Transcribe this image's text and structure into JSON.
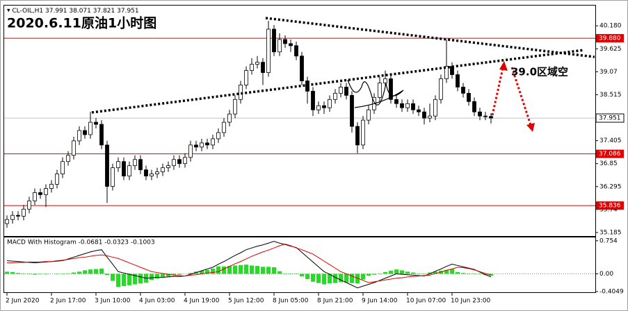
{
  "chart_data": [
    {
      "type": "candlestick",
      "symbol": "CL-OIL,H1",
      "title": "2020.6.11原油1小时图",
      "annotation": "39.0区域空",
      "categories": [
        "2 Jun 2020",
        null,
        null,
        null,
        null,
        null,
        null,
        null,
        "2 Jun 17:00",
        null,
        null,
        null,
        null,
        null,
        null,
        null,
        "3 Jun 10:00",
        null,
        null,
        null,
        null,
        null,
        null,
        null,
        "4 Jun 03:00",
        null,
        null,
        null,
        null,
        null,
        null,
        null,
        "4 Jun 19:00",
        null,
        null,
        null,
        null,
        null,
        null,
        null,
        "5 Jun 12:00",
        null,
        null,
        null,
        null,
        null,
        null,
        null,
        "8 Jun 05:00",
        null,
        null,
        null,
        null,
        null,
        null,
        null,
        "8 Jun 21:00",
        null,
        null,
        null,
        null,
        null,
        null,
        null,
        "9 Jun 14:00",
        null,
        null,
        null,
        null,
        null,
        null,
        null,
        "10 Jun 07:00",
        null,
        null,
        null,
        null,
        null,
        null,
        null,
        "10 Jun 23:00",
        null,
        null,
        null,
        null,
        null,
        null,
        null
      ],
      "open": [
        35.4,
        35.5,
        35.6,
        35.58,
        35.75,
        35.95,
        36.15,
        36.1,
        36.25,
        36.35,
        36.6,
        36.9,
        37.05,
        37.4,
        37.65,
        37.55,
        37.85,
        37.8,
        37.3,
        36.3,
        36.75,
        36.9,
        36.55,
        36.8,
        36.95,
        36.7,
        36.55,
        36.6,
        36.65,
        36.75,
        36.8,
        36.95,
        36.85,
        37.0,
        37.3,
        37.25,
        37.35,
        37.3,
        37.45,
        37.6,
        37.85,
        38.05,
        38.4,
        38.75,
        39.1,
        39.25,
        39.3,
        39.05,
        40.1,
        39.55,
        39.85,
        39.75,
        39.7,
        39.45,
        38.85,
        38.6,
        38.15,
        38.25,
        38.2,
        38.4,
        38.55,
        38.7,
        38.5,
        37.75,
        37.3,
        37.9,
        38.15,
        38.45,
        38.8,
        38.9,
        38.4,
        38.3,
        38.2,
        38.3,
        38.15,
        38.1,
        37.95,
        38.0,
        38.4,
        38.9,
        39.2,
        39.0,
        38.7,
        38.55,
        38.35,
        38.1,
        38.0,
        37.991
      ],
      "high": [
        35.6,
        35.7,
        35.7,
        35.85,
        36.05,
        36.25,
        36.25,
        36.35,
        36.45,
        36.7,
        37.0,
        37.15,
        37.5,
        37.75,
        37.75,
        38.1,
        37.95,
        37.9,
        37.4,
        36.85,
        37.0,
        37.0,
        36.9,
        37.05,
        37.05,
        36.8,
        36.7,
        36.75,
        36.85,
        36.9,
        37.05,
        37.05,
        37.1,
        37.4,
        37.4,
        37.45,
        37.45,
        37.55,
        37.7,
        37.95,
        38.15,
        38.5,
        38.85,
        39.2,
        39.4,
        39.45,
        39.4,
        40.3,
        40.2,
        40.0,
        39.95,
        39.85,
        39.8,
        39.55,
        38.95,
        38.7,
        38.35,
        38.35,
        38.5,
        38.65,
        38.8,
        38.8,
        38.6,
        37.85,
        38.0,
        38.25,
        38.55,
        38.95,
        39.1,
        39.0,
        38.5,
        38.4,
        38.4,
        38.4,
        38.25,
        38.2,
        38.3,
        38.5,
        39.0,
        39.85,
        39.3,
        39.1,
        38.8,
        38.65,
        38.45,
        38.2,
        38.1,
        38.071
      ],
      "low": [
        35.3,
        35.4,
        35.48,
        35.48,
        35.65,
        35.85,
        36.0,
        35.8,
        36.15,
        36.25,
        36.5,
        36.8,
        36.95,
        37.3,
        37.45,
        37.45,
        37.7,
        37.2,
        35.9,
        36.2,
        36.65,
        36.45,
        36.45,
        36.7,
        36.6,
        36.45,
        36.45,
        36.5,
        36.55,
        36.65,
        36.7,
        36.75,
        36.75,
        36.9,
        37.15,
        37.15,
        37.2,
        37.2,
        37.35,
        37.5,
        37.75,
        37.95,
        38.3,
        38.65,
        39.0,
        39.15,
        38.75,
        38.95,
        39.45,
        39.45,
        39.65,
        39.55,
        39.35,
        38.75,
        38.3,
        38.0,
        38.05,
        38.05,
        38.1,
        38.3,
        38.45,
        38.4,
        37.6,
        37.1,
        37.2,
        37.8,
        38.05,
        38.35,
        38.7,
        38.3,
        38.2,
        38.1,
        38.1,
        38.05,
        38.0,
        37.8,
        37.85,
        37.9,
        38.3,
        38.8,
        38.9,
        38.6,
        38.45,
        38.25,
        38.0,
        37.9,
        37.9,
        37.821
      ],
      "close": [
        35.5,
        35.6,
        35.58,
        35.75,
        35.95,
        36.15,
        36.1,
        36.25,
        36.35,
        36.6,
        36.9,
        37.05,
        37.4,
        37.65,
        37.55,
        37.85,
        37.8,
        37.3,
        36.3,
        36.75,
        36.9,
        36.55,
        36.8,
        36.95,
        36.7,
        36.55,
        36.6,
        36.65,
        36.75,
        36.8,
        36.95,
        36.85,
        37.0,
        37.3,
        37.25,
        37.35,
        37.3,
        37.45,
        37.6,
        37.85,
        38.05,
        38.4,
        38.75,
        39.1,
        39.25,
        39.3,
        39.05,
        40.1,
        39.55,
        39.85,
        39.75,
        39.7,
        39.45,
        38.85,
        38.6,
        38.15,
        38.25,
        38.2,
        38.4,
        38.55,
        38.7,
        38.5,
        37.75,
        37.3,
        37.9,
        38.15,
        38.45,
        38.8,
        38.9,
        38.4,
        38.3,
        38.2,
        38.3,
        38.15,
        38.1,
        37.95,
        38.0,
        38.4,
        38.9,
        39.2,
        39.0,
        38.7,
        38.55,
        38.35,
        38.1,
        38.0,
        37.991,
        37.951
      ],
      "up_color": "#ffffff",
      "down_color": "#000000",
      "ylim": [
        35.1,
        40.67
      ],
      "yticks": [
        {
          "value": 40.18,
          "label": "40.180"
        },
        39.625,
        39.07,
        38.515,
        37.405,
        36.85,
        36.295,
        35.74,
        35.185
      ],
      "levels": [
        {
          "value": 39.88,
          "label": "39.880"
        },
        {
          "value": 37.086,
          "label": "37.086"
        },
        {
          "value": 35.836,
          "label": "35.836"
        }
      ],
      "level_color": "#e00000",
      "last_price": 37.951
    },
    {
      "type": "macd",
      "title": "MACD With Histogram -0.0681 -0.0323 -0.1003",
      "histogram": [
        0.05,
        0.04,
        0.02,
        0.01,
        -0.01,
        -0.02,
        -0.01,
        -0.01,
        0,
        -0.01,
        -0.01,
        0.01,
        0.03,
        0.05,
        0.08,
        0.1,
        0.11,
        0.12,
        -0.03,
        -0.16,
        -0.3,
        -0.28,
        -0.26,
        -0.24,
        -0.22,
        -0.2,
        -0.14,
        -0.11,
        -0.09,
        -0.06,
        -0.03,
        -0.02,
        0,
        0.02,
        0.05,
        0.07,
        0.09,
        0.12,
        0.17,
        0.17,
        0.18,
        0.19,
        0.2,
        0.21,
        0.19,
        0.18,
        0.16,
        0.16,
        0.15,
        0.06,
        -0.01,
        -0.01,
        0.01,
        -0.06,
        -0.12,
        -0.18,
        -0.21,
        -0.24,
        -0.22,
        -0.21,
        -0.19,
        -0.2,
        -0.21,
        -0.22,
        -0.13,
        -0.04,
        -0.02,
        0.01,
        0.04,
        0.07,
        0.1,
        0.08,
        0.05,
        0.03,
        0.01,
        -0.01,
        0.03,
        0.05,
        0.07,
        0.09,
        0.11,
        0.04,
        0.02,
        0.01,
        0.01,
        -0.01,
        -0.03,
        -0.04
      ],
      "macd": [
        0.3,
        0.29,
        0.28,
        0.27,
        0.26,
        0.25,
        0.26,
        0.27,
        0.28,
        0.29,
        0.3,
        0.34,
        0.38,
        0.42,
        0.46,
        0.5,
        0.53,
        0.55,
        0.38,
        0.22,
        0.05,
        0.02,
        -0.01,
        -0.04,
        -0.07,
        -0.1,
        -0.09,
        -0.08,
        -0.08,
        -0.07,
        -0.06,
        -0.06,
        -0.05,
        -0.01,
        0.03,
        0.07,
        0.11,
        0.15,
        0.22,
        0.28,
        0.35,
        0.42,
        0.48,
        0.55,
        0.59,
        0.63,
        0.66,
        0.7,
        0.74,
        0.7,
        0.67,
        0.63,
        0.6,
        0.49,
        0.38,
        0.27,
        0.16,
        0.05,
        -0.01,
        -0.08,
        -0.14,
        -0.2,
        -0.26,
        -0.32,
        -0.28,
        -0.24,
        -0.2,
        -0.15,
        -0.1,
        -0.05,
        0,
        -0.01,
        -0.02,
        -0.03,
        -0.04,
        -0.05,
        0,
        0.06,
        0.11,
        0.17,
        0.22,
        0.19,
        0.16,
        0.13,
        0.1,
        0.04,
        -0.02,
        -0.07
      ],
      "signal": [
        0.25,
        0.25,
        0.26,
        0.26,
        0.27,
        0.27,
        0.27,
        0.28,
        0.28,
        0.3,
        0.31,
        0.33,
        0.35,
        0.37,
        0.38,
        0.4,
        0.42,
        0.43,
        0.41,
        0.38,
        0.35,
        0.3,
        0.25,
        0.2,
        0.15,
        0.1,
        0.05,
        0.03,
        0.01,
        -0.01,
        -0.03,
        -0.04,
        -0.05,
        -0.03,
        -0.02,
        0,
        0.02,
        0.03,
        0.05,
        0.11,
        0.17,
        0.23,
        0.28,
        0.34,
        0.4,
        0.45,
        0.5,
        0.54,
        0.59,
        0.64,
        0.68,
        0.64,
        0.59,
        0.55,
        0.5,
        0.45,
        0.37,
        0.29,
        0.21,
        0.13,
        0.05,
        0,
        -0.05,
        -0.1,
        -0.15,
        -0.2,
        -0.18,
        -0.16,
        -0.14,
        -0.12,
        -0.1,
        -0.09,
        -0.07,
        -0.06,
        -0.05,
        -0.04,
        -0.03,
        0.01,
        0.04,
        0.08,
        0.11,
        0.15,
        0.14,
        0.12,
        0.09,
        0.05,
        0.01,
        -0.03
      ],
      "histogram_color": "#22dd22",
      "macd_color": "#000000",
      "signal_color": "#e00000",
      "ylim": [
        -0.42,
        0.83
      ],
      "yticks": [
        0.754,
        {
          "value": 0,
          "label": "0.00"
        },
        -0.4049
      ]
    }
  ]
}
